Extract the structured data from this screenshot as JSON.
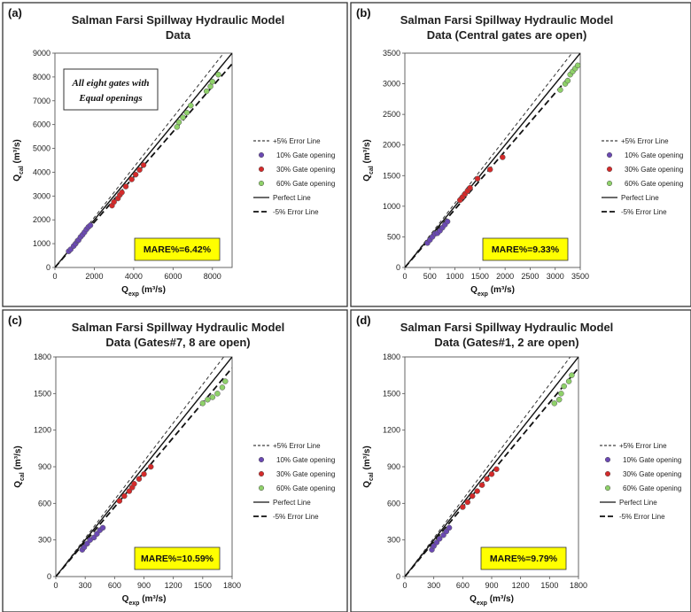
{
  "legend": {
    "plus5": "+5% Error Line",
    "g10": "10% Gate opening",
    "g30": "30% Gate opening",
    "g60": "60% Gate opening",
    "perfect": "Perfect Line",
    "minus5": "-5% Error Line"
  },
  "colors": {
    "g10": "#6b49b3",
    "g30": "#d42a2a",
    "g60": "#8fd16a",
    "mare_bg": "#ffff00"
  },
  "axis_labels": {
    "y_main": "Q",
    "y_sub": "cal",
    "y_unit": " (m³/s)",
    "x_main": "Q",
    "x_sub": "exp",
    "x_unit": " (m³/s)"
  },
  "chart_data": [
    {
      "panel": "(a)",
      "type": "scatter",
      "title": [
        "Salman Farsi Spillway Hydraulic Model",
        "Data"
      ],
      "note": [
        "All eight gates with",
        "Equal openings"
      ],
      "mare": "MARE%=6.42%",
      "xlim": [
        0,
        9000
      ],
      "ylim": [
        0,
        9000
      ],
      "xticks": [
        0,
        2000,
        4000,
        6000,
        8000
      ],
      "yticks": [
        0,
        1000,
        2000,
        3000,
        4000,
        5000,
        6000,
        7000,
        8000,
        9000
      ],
      "series": [
        {
          "name": "10% Gate opening",
          "x": [
            700,
            800,
            950,
            1050,
            1150,
            1200,
            1300,
            1400,
            1500,
            1600,
            1700,
            1800
          ],
          "y": [
            680,
            760,
            900,
            1000,
            1120,
            1150,
            1280,
            1370,
            1480,
            1600,
            1700,
            1770
          ]
        },
        {
          "name": "30% Gate opening",
          "x": [
            2900,
            3000,
            3200,
            3300,
            3400,
            3600,
            3900,
            4100,
            4300,
            4500
          ],
          "y": [
            2600,
            2750,
            2900,
            3050,
            3150,
            3400,
            3700,
            3900,
            4100,
            4300
          ]
        },
        {
          "name": "60% Gate opening",
          "x": [
            6200,
            6300,
            6500,
            6700,
            6900,
            7700,
            7900,
            8000,
            8300
          ],
          "y": [
            5900,
            6100,
            6300,
            6500,
            6800,
            7400,
            7600,
            7800,
            8100
          ]
        }
      ]
    },
    {
      "panel": "(b)",
      "type": "scatter",
      "title": [
        "Salman Farsi Spillway Hydraulic Model",
        "Data (Central gates are open)"
      ],
      "mare": "MARE%=9.33%",
      "xlim": [
        0,
        3500
      ],
      "ylim": [
        0,
        3500
      ],
      "xticks": [
        0,
        500,
        1000,
        1500,
        2000,
        2500,
        3000,
        3500
      ],
      "yticks": [
        0,
        500,
        1000,
        1500,
        2000,
        2500,
        3000,
        3500
      ],
      "series": [
        {
          "name": "10% Gate opening",
          "x": [
            450,
            500,
            550,
            600,
            650,
            700,
            750,
            800,
            850
          ],
          "y": [
            400,
            450,
            500,
            550,
            560,
            600,
            650,
            700,
            750
          ]
        },
        {
          "name": "30% Gate opening",
          "x": [
            1100,
            1150,
            1200,
            1250,
            1300,
            1450,
            1700,
            1950
          ],
          "y": [
            1100,
            1150,
            1200,
            1250,
            1300,
            1450,
            1600,
            1800
          ]
        },
        {
          "name": "60% Gate opening",
          "x": [
            3100,
            3200,
            3250,
            3300,
            3350,
            3400,
            3450
          ],
          "y": [
            2900,
            3000,
            3050,
            3150,
            3200,
            3250,
            3300
          ]
        }
      ]
    },
    {
      "panel": "(c)",
      "type": "scatter",
      "title": [
        "Salman Farsi Spillway Hydraulic Model",
        "Data (Gates#7, 8 are open)"
      ],
      "mare": "MARE%=10.59%",
      "xlim": [
        0,
        1800
      ],
      "ylim": [
        0,
        1800
      ],
      "xticks": [
        0,
        300,
        600,
        900,
        1200,
        1500,
        1800
      ],
      "yticks": [
        0,
        300,
        600,
        900,
        1200,
        1500,
        1800
      ],
      "series": [
        {
          "name": "10% Gate opening",
          "x": [
            270,
            290,
            320,
            350,
            390,
            420,
            450,
            480
          ],
          "y": [
            220,
            240,
            270,
            300,
            320,
            350,
            380,
            400
          ]
        },
        {
          "name": "30% Gate opening",
          "x": [
            650,
            700,
            750,
            780,
            800,
            850,
            900,
            970
          ],
          "y": [
            620,
            660,
            700,
            730,
            760,
            800,
            840,
            900
          ]
        },
        {
          "name": "60% Gate opening",
          "x": [
            1500,
            1550,
            1600,
            1650,
            1700,
            1730
          ],
          "y": [
            1420,
            1450,
            1470,
            1500,
            1550,
            1600
          ]
        }
      ]
    },
    {
      "panel": "(d)",
      "type": "scatter",
      "title": [
        "Salman Farsi Spillway Hydraulic Model",
        "Data (Gates#1, 2 are open)"
      ],
      "mare": "MARE%=9.79%",
      "xlim": [
        0,
        1800
      ],
      "ylim": [
        0,
        1800
      ],
      "xticks": [
        0,
        300,
        600,
        900,
        1200,
        1500,
        1800
      ],
      "yticks": [
        0,
        300,
        600,
        900,
        1200,
        1500,
        1800
      ],
      "series": [
        {
          "name": "10% Gate opening",
          "x": [
            280,
            300,
            330,
            360,
            400,
            430,
            460
          ],
          "y": [
            220,
            250,
            280,
            310,
            340,
            370,
            400
          ]
        },
        {
          "name": "30% Gate opening",
          "x": [
            600,
            650,
            700,
            750,
            800,
            850,
            900,
            950
          ],
          "y": [
            570,
            610,
            660,
            700,
            750,
            800,
            840,
            880
          ]
        },
        {
          "name": "60% Gate opening",
          "x": [
            1550,
            1600,
            1620,
            1650,
            1700,
            1730
          ],
          "y": [
            1420,
            1450,
            1500,
            1560,
            1600,
            1650
          ]
        }
      ]
    }
  ]
}
